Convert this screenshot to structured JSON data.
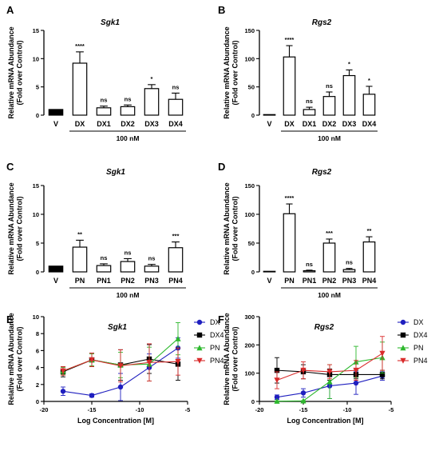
{
  "chart_data": [
    {
      "panel": "A",
      "type": "bar",
      "title": "Sgk1",
      "ylabel": [
        "Relative mRNA Abundance",
        "(Fold over Control)"
      ],
      "ylim": [
        0,
        15
      ],
      "yticks": [
        0,
        5,
        10,
        15
      ],
      "categories": [
        "V",
        "DX",
        "DX1",
        "DX2",
        "DX3",
        "DX4"
      ],
      "values": [
        1.0,
        9.2,
        1.3,
        1.5,
        4.7,
        2.8
      ],
      "errors": [
        0,
        2.0,
        0.3,
        0.3,
        0.7,
        1.1
      ],
      "significance": [
        "",
        "****",
        "ns",
        "ns",
        "*",
        "ns"
      ],
      "filled": [
        true,
        false,
        false,
        false,
        false,
        false
      ],
      "group_label": "100 nM"
    },
    {
      "panel": "B",
      "type": "bar",
      "title": "Rgs2",
      "ylabel": [
        "Relative mRNA Abundance",
        "(Fold over Control)"
      ],
      "ylim": [
        0,
        150
      ],
      "yticks": [
        0,
        50,
        100,
        150
      ],
      "categories": [
        "V",
        "DX",
        "DX1",
        "DX2",
        "DX3",
        "DX4"
      ],
      "values": [
        1,
        103,
        10,
        33,
        70,
        37
      ],
      "errors": [
        0,
        20,
        4,
        8,
        10,
        14
      ],
      "significance": [
        "",
        "****",
        "ns",
        "ns",
        "*",
        "*"
      ],
      "filled": [
        true,
        false,
        false,
        false,
        false,
        false
      ],
      "group_label": "100 nM"
    },
    {
      "panel": "C",
      "type": "bar",
      "title": "Sgk1",
      "ylabel": [
        "Relative mRNA Abundance",
        "(Fold over Control)"
      ],
      "ylim": [
        0,
        15
      ],
      "yticks": [
        0,
        5,
        10,
        15
      ],
      "categories": [
        "V",
        "PN",
        "PN1",
        "PN2",
        "PN3",
        "PN4"
      ],
      "values": [
        1.0,
        4.3,
        1.1,
        1.8,
        1.0,
        4.2
      ],
      "errors": [
        0,
        1.2,
        0.3,
        0.5,
        0.3,
        1.0
      ],
      "significance": [
        "",
        "**",
        "ns",
        "ns",
        "ns",
        "***"
      ],
      "filled": [
        true,
        false,
        false,
        false,
        false,
        false
      ],
      "group_label": "100 nM"
    },
    {
      "panel": "D",
      "type": "bar",
      "title": "Rgs2",
      "ylabel": [
        "Relative mRNA Abundance",
        "(Fold over Control)"
      ],
      "ylim": [
        0,
        150
      ],
      "yticks": [
        0,
        50,
        100,
        150
      ],
      "categories": [
        "V",
        "PN",
        "PN1",
        "PN2",
        "PN3",
        "PN4"
      ],
      "values": [
        1,
        101,
        2,
        50,
        4,
        52
      ],
      "errors": [
        0,
        17,
        1,
        7,
        2,
        9
      ],
      "significance": [
        "",
        "****",
        "ns",
        "***",
        "ns",
        "**"
      ],
      "filled": [
        true,
        false,
        false,
        false,
        false,
        false
      ],
      "group_label": "100 nM"
    },
    {
      "panel": "E",
      "type": "line",
      "title": "Sgk1",
      "ylabel": [
        "Relative mRNA Abundance",
        "(Fold over Control)"
      ],
      "xlabel": "Log Concentration [M]",
      "xlim": [
        -20,
        -5
      ],
      "xticks": [
        -20,
        -15,
        -10,
        -5
      ],
      "ylim": [
        0,
        10
      ],
      "yticks": [
        0,
        2,
        4,
        6,
        8,
        10
      ],
      "x": [
        -18,
        -15,
        -12,
        -9,
        -6
      ],
      "series": [
        {
          "name": "DX",
          "color": "#1f1fbf",
          "marker": "circle",
          "values": [
            1.2,
            0.7,
            1.7,
            4.0,
            6.3
          ],
          "errors": [
            0.5,
            0.2,
            1.6,
            1.6,
            1.2
          ]
        },
        {
          "name": "DX4",
          "color": "#000000",
          "marker": "square",
          "values": [
            3.5,
            4.9,
            4.3,
            5.0,
            4.4
          ],
          "errors": [
            0.6,
            0.8,
            1.8,
            1.7,
            1.9
          ]
        },
        {
          "name": "PN",
          "color": "#2db82d",
          "marker": "triangle-up",
          "values": [
            3.6,
            4.9,
            4.3,
            4.4,
            7.4
          ],
          "errors": [
            0.4,
            0.7,
            1.5,
            2.0,
            1.9
          ]
        },
        {
          "name": "PN4",
          "color": "#d92b2b",
          "marker": "triangle-down",
          "values": [
            3.6,
            4.9,
            4.2,
            4.6,
            4.7
          ],
          "errors": [
            0.5,
            0.8,
            1.9,
            2.2,
            1.6
          ]
        }
      ],
      "legend": "right"
    },
    {
      "panel": "F",
      "type": "line",
      "title": "Rgs2",
      "ylabel": [
        "Relative mRNA Abundance",
        "(Fold over Control)"
      ],
      "xlabel": "Log Concentration [M]",
      "xlim": [
        -20,
        -5
      ],
      "xticks": [
        -20,
        -15,
        -10,
        -5
      ],
      "ylim": [
        0,
        300
      ],
      "yticks": [
        0,
        100,
        200,
        300
      ],
      "x": [
        -18,
        -15,
        -12,
        -9,
        -6
      ],
      "series": [
        {
          "name": "DX",
          "color": "#1f1fbf",
          "marker": "circle",
          "values": [
            15,
            30,
            55,
            65,
            90
          ],
          "errors": [
            8,
            15,
            45,
            40,
            15
          ]
        },
        {
          "name": "DX4",
          "color": "#000000",
          "marker": "square",
          "values": [
            110,
            105,
            95,
            95,
            95
          ],
          "errors": [
            45,
            25,
            20,
            15,
            15
          ]
        },
        {
          "name": "PN",
          "color": "#2db82d",
          "marker": "triangle-up",
          "values": [
            1,
            2,
            70,
            140,
            155
          ],
          "errors": [
            1,
            1,
            60,
            55,
            55
          ]
        },
        {
          "name": "PN4",
          "color": "#d92b2b",
          "marker": "triangle-down",
          "values": [
            75,
            110,
            105,
            110,
            170
          ],
          "errors": [
            30,
            30,
            25,
            35,
            60
          ]
        }
      ],
      "legend": "right"
    }
  ]
}
